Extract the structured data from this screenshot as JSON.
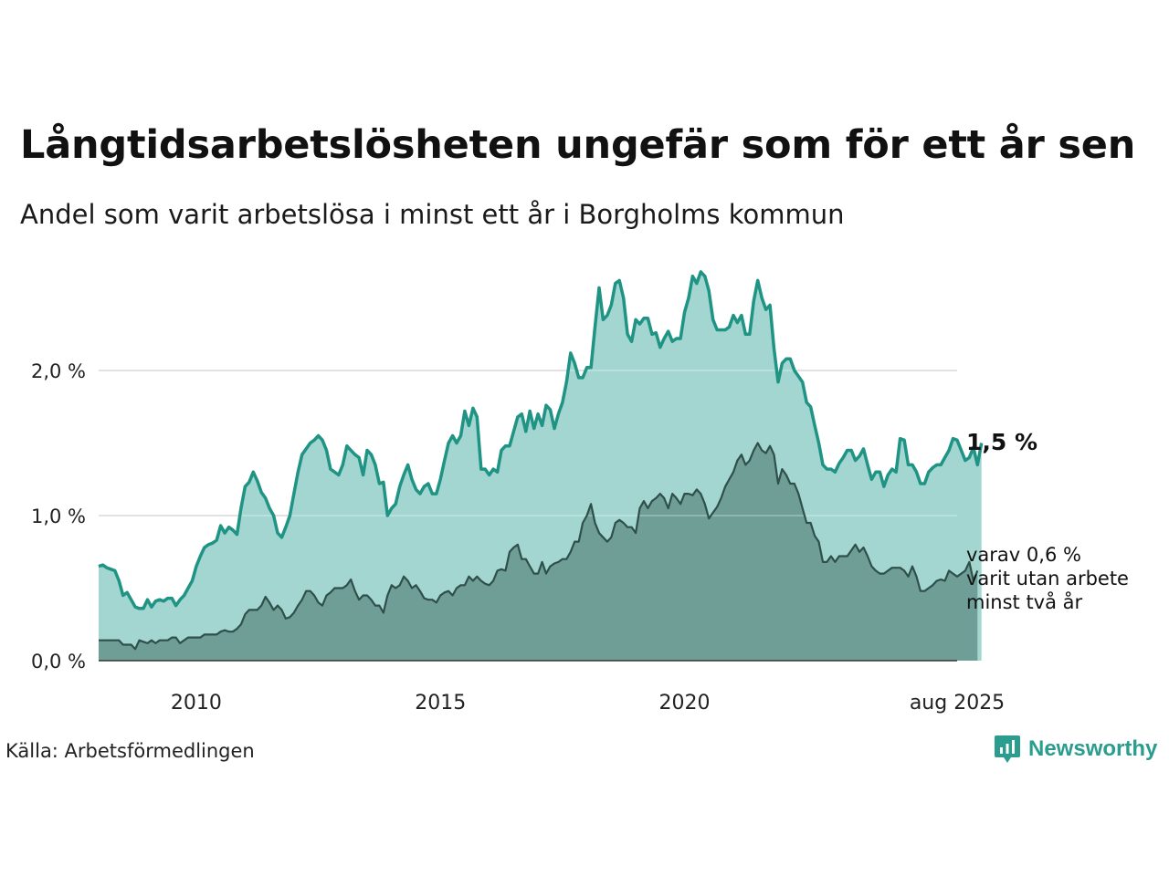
{
  "title": "Långtidsarbetslösheten ungefär som för ett år sen",
  "subtitle": "Andel som varit arbetslösa i minst ett år i Borgholms kommun",
  "source": "Källa: Arbetsförmedlingen",
  "brand": "Newsworthy",
  "end_labels": {
    "total": "1,5 %",
    "sub_line1": "varav 0,6 %",
    "sub_line2": "varit utan arbete",
    "sub_line3": "minst två år"
  },
  "colors": {
    "total_line": "#1f9384",
    "total_fill": "#a3d6d0",
    "sub_fill": "#6f9e97",
    "sub_line": "#2f4f4a",
    "grid": "#d9d9d9"
  },
  "chart_data": {
    "type": "area",
    "title": "Långtidsarbetslösheten ungefär som för ett år sen",
    "subtitle": "Andel som varit arbetslösa i minst ett år i Borgholms kommun",
    "x_start": "2008-01",
    "x_end": "2025-08",
    "frequency": "monthly",
    "x_ticks": [
      {
        "x": "2010-01",
        "label": "2010"
      },
      {
        "x": "2015-01",
        "label": "2015"
      },
      {
        "x": "2020-01",
        "label": "2020"
      },
      {
        "x": "2025-08",
        "label": "aug 2025"
      }
    ],
    "ylim": [
      0,
      2.7
    ],
    "y_ticks": [
      {
        "value": 0,
        "label": "0,0 %"
      },
      {
        "value": 1,
        "label": "1,0 %"
      },
      {
        "value": 2,
        "label": "2,0 %"
      }
    ],
    "grid": true,
    "series": [
      {
        "values": [
          0.65,
          0.66,
          0.64,
          0.63,
          0.62,
          0.55,
          0.45,
          0.47,
          0.42,
          0.37,
          0.36,
          0.36,
          0.42,
          0.37,
          0.41,
          0.42,
          0.41,
          0.43,
          0.43,
          0.38,
          0.42,
          0.45,
          0.5,
          0.55,
          0.65,
          0.72,
          0.78,
          0.8,
          0.81,
          0.83,
          0.93,
          0.88,
          0.92,
          0.9,
          0.87,
          1.05,
          1.2,
          1.23,
          1.3,
          1.24,
          1.16,
          1.12,
          1.05,
          1.0,
          0.88,
          0.85,
          0.92,
          1.0,
          1.15,
          1.3,
          1.42,
          1.46,
          1.5,
          1.52,
          1.55,
          1.52,
          1.45,
          1.32,
          1.3,
          1.28,
          1.35,
          1.48,
          1.45,
          1.42,
          1.4,
          1.28,
          1.45,
          1.42,
          1.35,
          1.22,
          1.23,
          1.0,
          1.05,
          1.08,
          1.2,
          1.28,
          1.35,
          1.25,
          1.18,
          1.15,
          1.2,
          1.22,
          1.15,
          1.15,
          1.25,
          1.38,
          1.5,
          1.55,
          1.5,
          1.55,
          1.72,
          1.62,
          1.74,
          1.68,
          1.32,
          1.32,
          1.28,
          1.32,
          1.3,
          1.45,
          1.48,
          1.48,
          1.58,
          1.68,
          1.7,
          1.58,
          1.72,
          1.6,
          1.7,
          1.62,
          1.76,
          1.73,
          1.6,
          1.7,
          1.78,
          1.92,
          2.12,
          2.05,
          1.95,
          1.95,
          2.02,
          2.02,
          2.3,
          2.57,
          2.35,
          2.38,
          2.45,
          2.6,
          2.62,
          2.5,
          2.25,
          2.2,
          2.35,
          2.32,
          2.36,
          2.36,
          2.25,
          2.26,
          2.16,
          2.22,
          2.27,
          2.2,
          2.22,
          2.22,
          2.4,
          2.5,
          2.65,
          2.6,
          2.68,
          2.65,
          2.55,
          2.35,
          2.28,
          2.28,
          2.28,
          2.3,
          2.38,
          2.33,
          2.38,
          2.25,
          2.25,
          2.48,
          2.62,
          2.5,
          2.42,
          2.45,
          2.15,
          1.92,
          2.05,
          2.08,
          2.08,
          2.0,
          1.96,
          1.92,
          1.78,
          1.75,
          1.62,
          1.5,
          1.35,
          1.32,
          1.32,
          1.3,
          1.36,
          1.4,
          1.45,
          1.45,
          1.38,
          1.41,
          1.46,
          1.35,
          1.25,
          1.3,
          1.3,
          1.2,
          1.28,
          1.32,
          1.3,
          1.53,
          1.52,
          1.35,
          1.35,
          1.3,
          1.22,
          1.22,
          1.3,
          1.33,
          1.35,
          1.35,
          1.4,
          1.45,
          1.53,
          1.52,
          1.45,
          1.38,
          1.4,
          1.47,
          1.35,
          1.5
        ]
      },
      {
        "values": [
          0.14,
          0.14,
          0.14,
          0.14,
          0.14,
          0.14,
          0.11,
          0.11,
          0.11,
          0.08,
          0.14,
          0.13,
          0.12,
          0.14,
          0.12,
          0.14,
          0.14,
          0.14,
          0.16,
          0.16,
          0.12,
          0.14,
          0.16,
          0.16,
          0.16,
          0.16,
          0.18,
          0.18,
          0.18,
          0.18,
          0.2,
          0.21,
          0.2,
          0.2,
          0.22,
          0.25,
          0.32,
          0.35,
          0.35,
          0.35,
          0.38,
          0.44,
          0.4,
          0.35,
          0.38,
          0.35,
          0.29,
          0.3,
          0.33,
          0.38,
          0.42,
          0.48,
          0.48,
          0.45,
          0.4,
          0.38,
          0.45,
          0.47,
          0.5,
          0.5,
          0.5,
          0.52,
          0.56,
          0.48,
          0.42,
          0.45,
          0.45,
          0.42,
          0.38,
          0.38,
          0.33,
          0.45,
          0.52,
          0.5,
          0.52,
          0.58,
          0.55,
          0.5,
          0.52,
          0.48,
          0.43,
          0.42,
          0.42,
          0.4,
          0.45,
          0.47,
          0.48,
          0.45,
          0.5,
          0.52,
          0.52,
          0.58,
          0.55,
          0.58,
          0.55,
          0.53,
          0.52,
          0.55,
          0.62,
          0.63,
          0.62,
          0.75,
          0.78,
          0.8,
          0.7,
          0.7,
          0.65,
          0.6,
          0.6,
          0.68,
          0.6,
          0.65,
          0.67,
          0.68,
          0.7,
          0.7,
          0.75,
          0.82,
          0.82,
          0.95,
          1.0,
          1.08,
          0.95,
          0.88,
          0.85,
          0.82,
          0.85,
          0.95,
          0.97,
          0.95,
          0.92,
          0.92,
          0.88,
          1.05,
          1.1,
          1.05,
          1.1,
          1.12,
          1.15,
          1.12,
          1.05,
          1.15,
          1.12,
          1.08,
          1.15,
          1.15,
          1.14,
          1.18,
          1.15,
          1.08,
          0.98,
          1.02,
          1.06,
          1.12,
          1.2,
          1.25,
          1.3,
          1.38,
          1.42,
          1.35,
          1.38,
          1.45,
          1.5,
          1.45,
          1.43,
          1.48,
          1.42,
          1.22,
          1.32,
          1.28,
          1.22,
          1.22,
          1.15,
          1.05,
          0.95,
          0.95,
          0.86,
          0.82,
          0.68,
          0.68,
          0.72,
          0.68,
          0.72,
          0.72,
          0.72,
          0.76,
          0.8,
          0.75,
          0.78,
          0.72,
          0.65,
          0.62,
          0.6,
          0.6,
          0.62,
          0.64,
          0.64,
          0.64,
          0.62,
          0.58,
          0.65,
          0.58,
          0.48,
          0.48,
          0.5,
          0.52,
          0.55,
          0.56,
          0.55,
          0.62,
          0.6,
          0.58,
          0.6,
          0.62,
          0.68,
          0.55,
          0.62
        ]
      }
    ]
  }
}
